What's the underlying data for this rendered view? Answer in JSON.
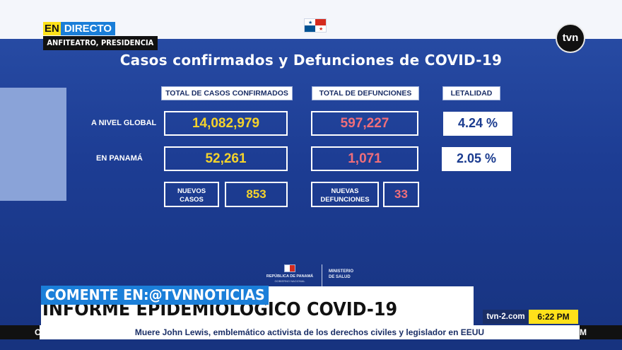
{
  "broadcast": {
    "live_prefix": "EN",
    "live_label": "DIRECTO",
    "location": "ANFITEATRO, PRESIDENCIA",
    "channel_logo": "tvn",
    "lower_third_promo": "COMENTE EN:@TVNNOTICIAS",
    "slide_banner": "INFORME EPIDEMIOLOGICO COVID-19",
    "website": "tvn-2.com",
    "time": "6:22 PM",
    "ticker": "Muere John Lewis, emblemático activista de los derechos civiles y legislador en EEUU",
    "ticker_left_fragment": "O",
    "ticker_right_fragment": "M"
  },
  "slide": {
    "title": "Casos confirmados y Defunciones de COVID-19",
    "headers": {
      "cases": "TOTAL DE CASOS CONFIRMADOS",
      "deaths": "TOTAL DE DEFUNCIONES",
      "lethality": "LETALIDAD"
    },
    "rows": [
      {
        "label": "A NIVEL GLOBAL",
        "cases": "14,082,979",
        "deaths": "597,227",
        "lethality": "4.24 %"
      },
      {
        "label": "EN PANAMÁ",
        "cases": "52,261",
        "deaths": "1,071",
        "lethality": "2.05 %"
      }
    ],
    "new_cases_label_line1": "NUEVOS",
    "new_cases_label_line2": "CASOS",
    "new_cases_value": "853",
    "new_deaths_label_line1": "NUEVAS",
    "new_deaths_label_line2": "DEFUNCIONES",
    "new_deaths_value": "33",
    "footer_republic": "REPÚBLICA DE PANAMÁ",
    "footer_government": "GOBIERNO NACIONAL",
    "footer_ministry_line1": "MINISTERIO",
    "footer_ministry_line2": "DE SALUD"
  },
  "colors": {
    "background": "#1e3f8e",
    "cases_value": "#f5d32b",
    "deaths_value": "#f06e7a",
    "live_yellow": "#ffe11a",
    "live_blue": "#1a7ed8"
  }
}
